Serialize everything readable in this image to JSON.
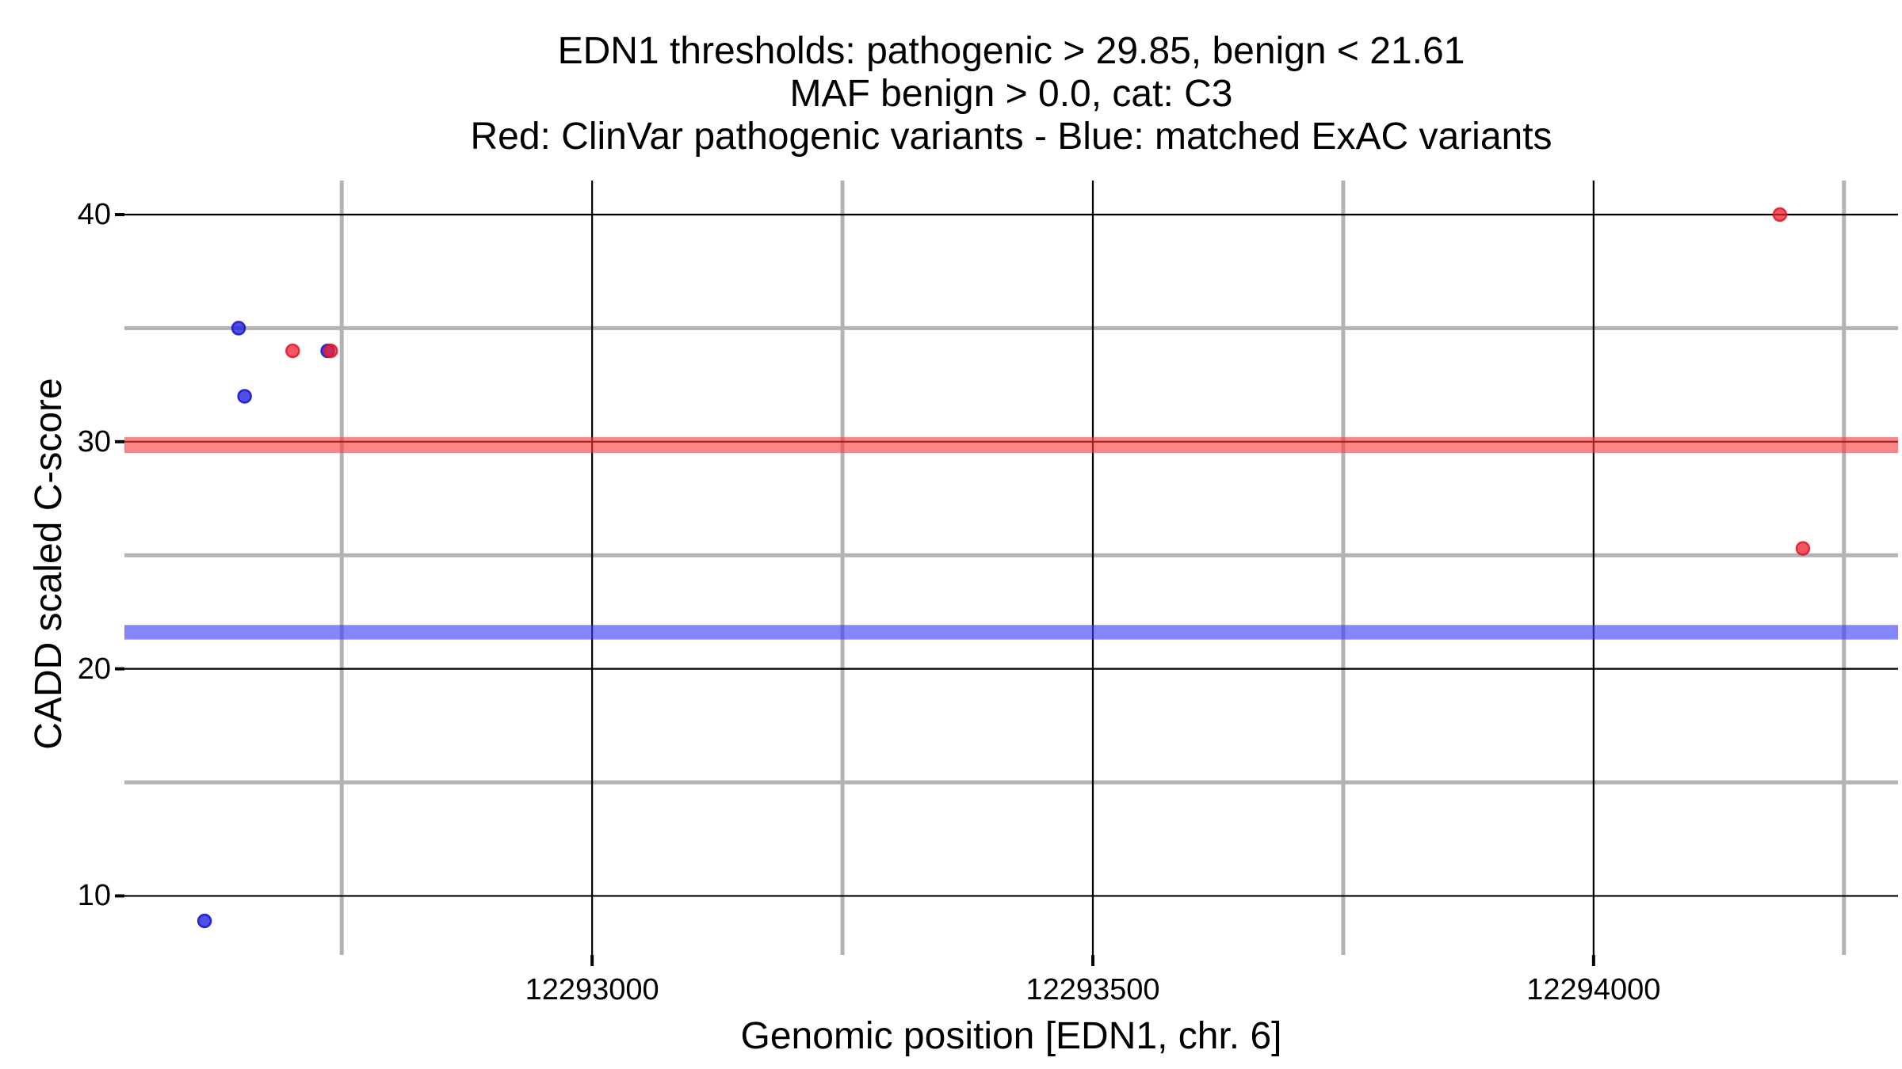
{
  "title": {
    "lines": [
      "EDN1 thresholds: pathogenic > 29.85, benign < 21.61",
      "MAF benign > 0.0, cat: C3",
      "Red: ClinVar pathogenic variants - Blue: matched ExAC variants"
    ]
  },
  "chart_data": {
    "type": "scatter",
    "gene": "EDN1",
    "chromosome": "6",
    "category": "C3",
    "maf_benign": "0.0",
    "xlabel": "Genomic position [EDN1, chr. 6]",
    "ylabel": "CADD scaled C-score",
    "xlim": [
      12292533,
      12294304
    ],
    "ylim": [
      7.4,
      41.5
    ],
    "grid": "major-black, minor-gray, no panel border",
    "legend_position": "none (encoded in title line 3)",
    "x_ticks": [
      {
        "value": 12293000,
        "label": "12293000"
      },
      {
        "value": 12293500,
        "label": "12293500"
      },
      {
        "value": 12294000,
        "label": "12294000"
      }
    ],
    "y_ticks": [
      {
        "value": 40,
        "label": "40"
      },
      {
        "value": 30,
        "label": "30"
      },
      {
        "value": 20,
        "label": "20"
      },
      {
        "value": 10,
        "label": "10"
      }
    ],
    "x_minor_gridlines": [
      12292750,
      12293250,
      12293750,
      12294250
    ],
    "y_minor_gridlines": [
      35,
      25,
      15
    ],
    "thresholds": [
      {
        "name": "pathogenic threshold",
        "rule": "pathogenic > 29.85",
        "value": 29.85,
        "band_color": "rgba(250,60,60,0.62)",
        "band_range": [
          29.5,
          30.2
        ]
      },
      {
        "name": "benign threshold",
        "rule": "benign < 21.61",
        "value": 21.61,
        "band_color": "rgba(60,60,250,0.62)",
        "band_range": [
          21.29,
          21.93
        ]
      }
    ],
    "series": [
      {
        "name": "matched ExAC variants",
        "color": "blue",
        "fill": "rgba(35,35,225,0.8)",
        "stroke": "rgba(25,25,200,0.9)",
        "points": [
          [
            12292613,
            8.9
          ],
          [
            12292647,
            35.0
          ],
          [
            12292653,
            32.0
          ],
          [
            12292736,
            34.0
          ]
        ]
      },
      {
        "name": "ClinVar pathogenic variants",
        "color": "red",
        "fill": "rgba(240,30,45,0.75)",
        "stroke": "rgba(225,20,35,0.85)",
        "points": [
          [
            12292701,
            34.0
          ],
          [
            12292739,
            34.0
          ],
          [
            12294186,
            40.0
          ],
          [
            12294209,
            25.3
          ]
        ]
      }
    ],
    "style": {
      "major_gridline_color": "#000000",
      "minor_gridline_color": "#b3b3b3",
      "tick_color": "#000000",
      "background": "#ffffff"
    }
  }
}
